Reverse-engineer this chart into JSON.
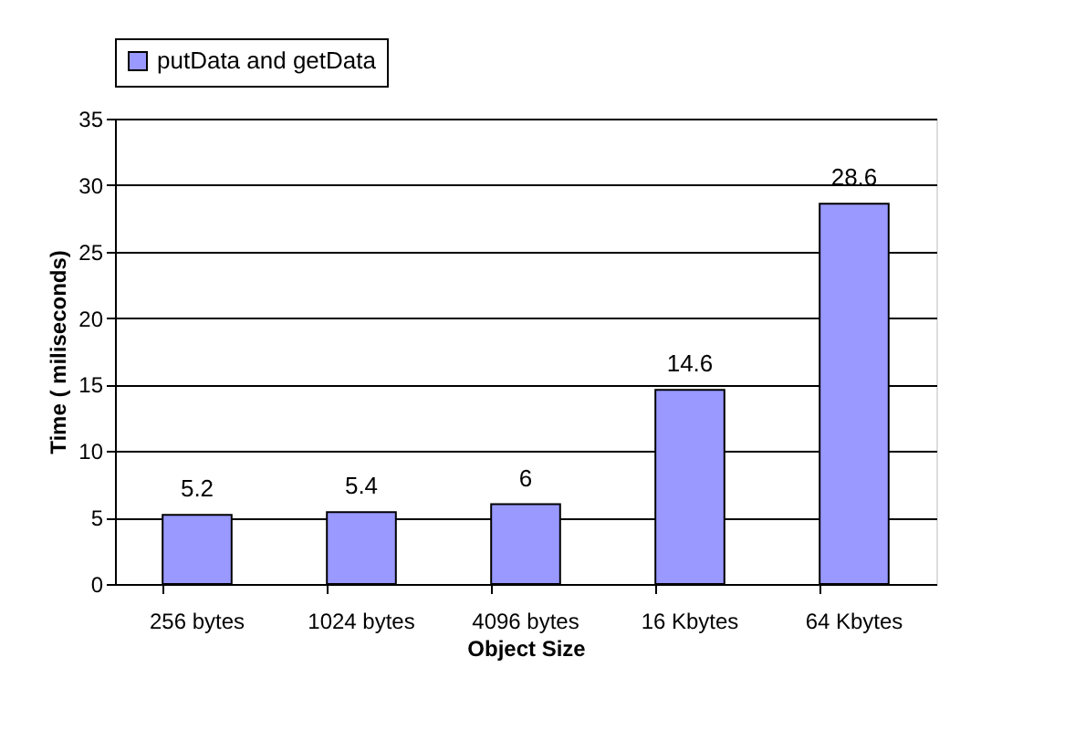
{
  "chart_data": {
    "type": "bar",
    "xlabel": "Object Size",
    "ylabel": "Time ( miliseconds)",
    "categories": [
      "256 bytes",
      "1024 bytes",
      "4096 bytes",
      "16 Kbytes",
      "64 Kbytes"
    ],
    "series": [
      {
        "name": "putData and getData",
        "color": "#9999ff",
        "values": [
          5.2,
          5.4,
          6,
          14.6,
          28.6
        ]
      }
    ],
    "ylim": [
      0,
      35
    ],
    "yticks": [
      0,
      5,
      10,
      15,
      20,
      25,
      30,
      35
    ],
    "grid": "y",
    "legend": "top",
    "data_labels": true
  }
}
